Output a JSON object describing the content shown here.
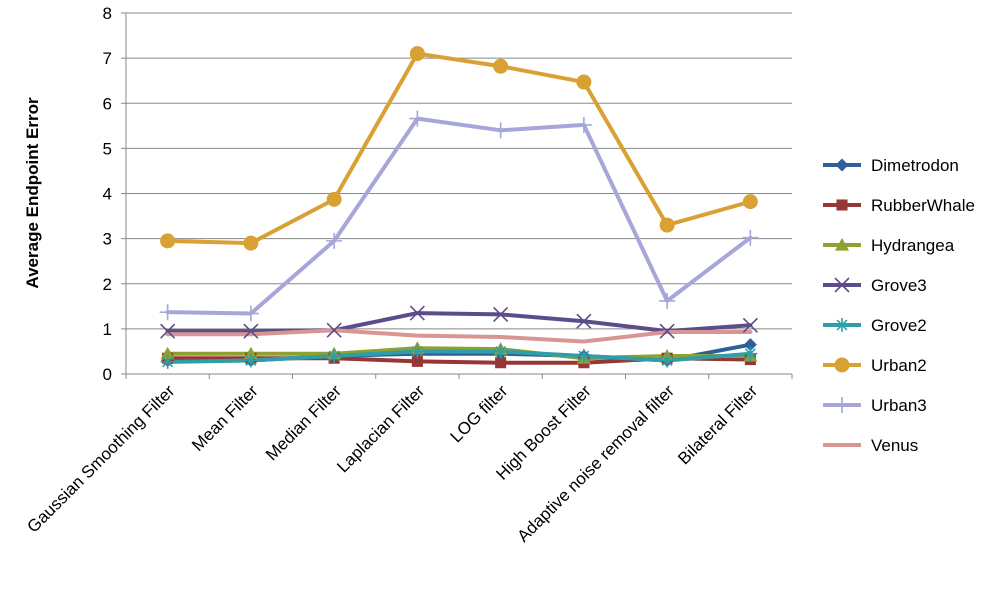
{
  "chart_data": {
    "type": "line",
    "title": "",
    "xlabel": "",
    "ylabel": "Average Endpoint Error",
    "ylim": [
      0,
      8
    ],
    "yticks": [
      0,
      1,
      2,
      3,
      4,
      5,
      6,
      7,
      8
    ],
    "grid": "horizontal",
    "legend_position": "right",
    "categories": [
      "Gaussian Smoothing Filter",
      "Mean Filter",
      "Median Filter",
      "Laplacian Filter",
      "LOG filter",
      "High Boost Filter",
      "Adaptive noise removal filter",
      "Bilateral Filter"
    ],
    "series": [
      {
        "name": "Dimetrodon",
        "color": "#2f5f98",
        "marker": "diamond",
        "values": [
          0.3,
          0.3,
          0.4,
          0.45,
          0.45,
          0.4,
          0.3,
          0.65
        ]
      },
      {
        "name": "RubberWhale",
        "color": "#953734",
        "marker": "square",
        "values": [
          0.35,
          0.35,
          0.35,
          0.28,
          0.25,
          0.25,
          0.35,
          0.32
        ]
      },
      {
        "name": "Hydrangea",
        "color": "#8ea02e",
        "marker": "triangle",
        "values": [
          0.45,
          0.45,
          0.45,
          0.57,
          0.55,
          0.35,
          0.4,
          0.4
        ]
      },
      {
        "name": "Grove3",
        "color": "#5c4c8a",
        "marker": "x",
        "values": [
          0.95,
          0.95,
          0.97,
          1.35,
          1.32,
          1.17,
          0.95,
          1.08
        ]
      },
      {
        "name": "Grove2",
        "color": "#2e9fa6",
        "marker": "asterisk",
        "values": [
          0.27,
          0.3,
          0.4,
          0.5,
          0.5,
          0.4,
          0.3,
          0.45
        ]
      },
      {
        "name": "Urban2",
        "color": "#d9a033",
        "marker": "circle",
        "values": [
          2.95,
          2.9,
          3.87,
          7.1,
          6.82,
          6.47,
          3.3,
          3.82
        ]
      },
      {
        "name": "Urban3",
        "color": "#a6a6d9",
        "marker": "plus",
        "values": [
          1.37,
          1.34,
          2.95,
          5.66,
          5.4,
          5.52,
          1.62,
          3.02
        ]
      },
      {
        "name": "Venus",
        "color": "#d99594",
        "marker": "none",
        "values": [
          0.88,
          0.88,
          0.97,
          0.85,
          0.82,
          0.72,
          0.93,
          0.93
        ]
      }
    ]
  }
}
